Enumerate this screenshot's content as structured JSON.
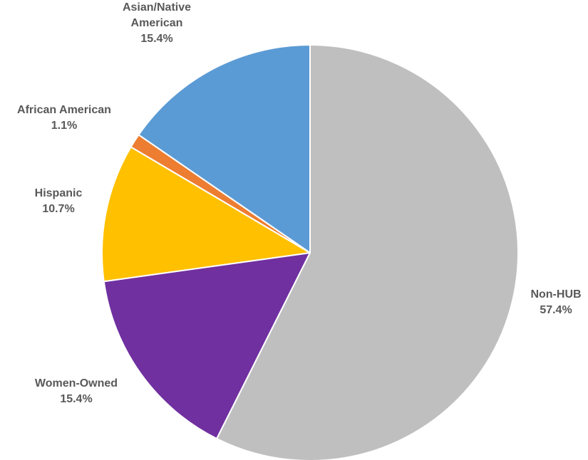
{
  "chart_data": {
    "type": "pie",
    "title": "",
    "legend": "none",
    "start_angle_deg": 0,
    "direction": "clockwise",
    "slices": [
      {
        "name": "Non-HUB",
        "label_lines": [
          "Non-HUB"
        ],
        "value": 57.4,
        "value_label": "57.4%",
        "color": "#bfbfbf"
      },
      {
        "name": "Women-Owned",
        "label_lines": [
          "Women-Owned"
        ],
        "value": 15.4,
        "value_label": "15.4%",
        "color": "#7030a0"
      },
      {
        "name": "Hispanic",
        "label_lines": [
          "Hispanic"
        ],
        "value": 10.7,
        "value_label": "10.7%",
        "color": "#ffc000"
      },
      {
        "name": "African American",
        "label_lines": [
          "African American"
        ],
        "value": 1.1,
        "value_label": "1.1%",
        "color": "#ed7d31"
      },
      {
        "name": "Asian/Native American",
        "label_lines": [
          "Asian/Native",
          "American"
        ],
        "value": 15.4,
        "value_label": "15.4%",
        "color": "#5b9bd5"
      }
    ]
  }
}
